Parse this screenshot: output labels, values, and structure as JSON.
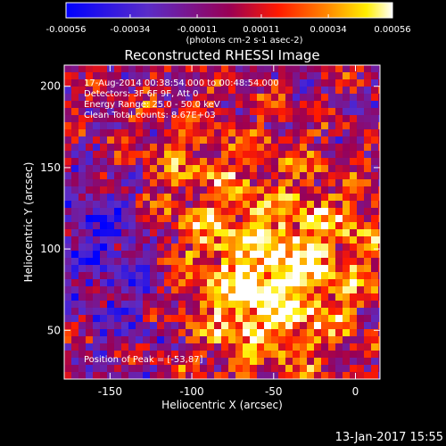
{
  "chart_data": {
    "type": "heatmap",
    "title": "Reconstructed RHESSI Image",
    "xlabel": "Heliocentric X (arcsec)",
    "ylabel": "Heliocentric Y (arcsec)",
    "xlim": [
      -178,
      15
    ],
    "ylim": [
      20,
      213
    ],
    "x_ticks": [
      "-150",
      "-100",
      "-50",
      "0"
    ],
    "y_ticks": [
      "50",
      "100",
      "150",
      "200"
    ],
    "colorbar": {
      "colormap": "blue-purple-red-yellow-white",
      "range": [
        -0.00056,
        0.00056
      ],
      "ticks": [
        "-0.00056",
        "-0.00034",
        "-0.00011",
        "0.00011",
        "0.00034",
        "0.00056"
      ],
      "unit_label": "(photons cm-2 s-1 asec-2)"
    },
    "annotations": {
      "time_range": "17-Aug-2014 00:38:54.000 to 00:48:54.000",
      "detectors": "Detectors: 3F 6F 9F, Att 0",
      "energy": "Energy Range: 25.0 - 50.0 keV",
      "method": "Clean     Total counts: 8.67E+03",
      "peak": "Position of Peak = [-53,87]"
    },
    "grid": false
  },
  "footer": {
    "date": "13-Jan-2017 15:55"
  }
}
